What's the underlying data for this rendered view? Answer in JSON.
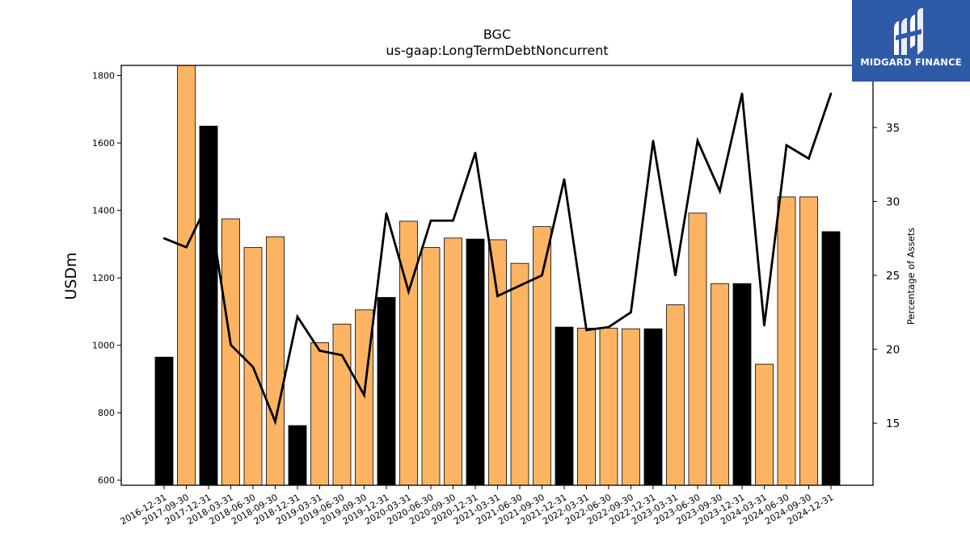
{
  "chart_data": {
    "type": "bar+line",
    "title": "BGC",
    "subtitle": "us-gaap:LongTermDebtNoncurrent",
    "ylabel": "USDm",
    "y2label": "Percentage of Assets",
    "ylim": [
      585,
      1830
    ],
    "y2lim": [
      10.8,
      39.2
    ],
    "yticks": [
      600,
      800,
      1000,
      1200,
      1400,
      1600,
      1800
    ],
    "y2ticks": [
      15,
      20,
      25,
      30,
      35
    ],
    "categories": [
      "2016-12-31",
      "2017-09-30",
      "2017-12-31",
      "2018-03-31",
      "2018-06-30",
      "2018-09-30",
      "2018-12-31",
      "2019-03-31",
      "2019-06-30",
      "2019-09-30",
      "2019-12-31",
      "2020-03-31",
      "2020-06-30",
      "2020-09-30",
      "2020-12-31",
      "2021-03-31",
      "2021-06-30",
      "2021-09-30",
      "2021-12-31",
      "2022-03-31",
      "2022-06-30",
      "2022-09-30",
      "2022-12-31",
      "2023-03-31",
      "2023-06-30",
      "2023-09-30",
      "2023-12-31",
      "2024-03-31",
      "2024-06-30",
      "2024-09-30",
      "2024-12-31"
    ],
    "series": [
      {
        "kind": "bar",
        "values": [
          965,
          1830,
          1650,
          1375,
          1290,
          1322,
          762,
          1008,
          1063,
          1105,
          1142,
          1368,
          1290,
          1318,
          1315,
          1313,
          1243,
          1352,
          1054,
          1051,
          1051,
          1049,
          1049,
          1120,
          1392,
          1183,
          1183,
          944,
          1440,
          1440,
          1337
        ],
        "annual": [
          true,
          false,
          true,
          false,
          false,
          false,
          true,
          false,
          false,
          false,
          true,
          false,
          false,
          false,
          true,
          false,
          false,
          false,
          true,
          false,
          false,
          false,
          true,
          false,
          false,
          false,
          true,
          false,
          false,
          false,
          true
        ]
      },
      {
        "kind": "line",
        "axis": "right",
        "values": [
          27.5,
          26.9,
          30.0,
          20.3,
          18.8,
          15.1,
          22.2,
          19.9,
          19.6,
          16.9,
          29.2,
          23.9,
          28.7,
          28.7,
          33.3,
          23.6,
          24.3,
          25.0,
          31.5,
          21.3,
          21.5,
          22.5,
          34.1,
          25.0,
          34.1,
          30.7,
          37.3,
          21.6,
          33.8,
          32.9,
          37.3
        ]
      }
    ],
    "colors": {
      "annual_bar": "#000000",
      "quarter_bar": "#fdb462",
      "line": "#000000"
    },
    "grid": false,
    "legend": "none"
  },
  "logo": {
    "text": "MIDGARD FINANCE",
    "background": "#2f5aa8"
  }
}
